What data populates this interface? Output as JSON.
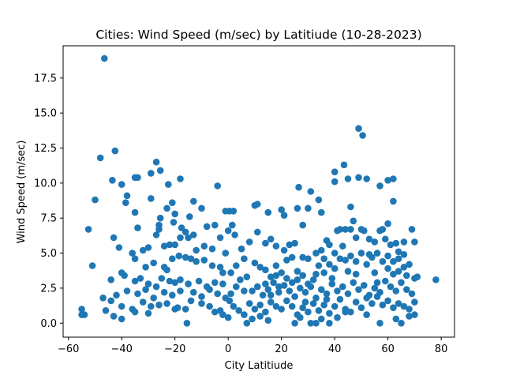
{
  "chart_data": {
    "type": "scatter",
    "title": "Cities: Wind Speed (m/sec) by Latitiude (10-28-2023)",
    "xlabel": "City Latitiude",
    "ylabel": "Wind Speed (m/sec)",
    "xlim": [
      -62,
      85
    ],
    "ylim": [
      -1,
      19.8
    ],
    "xticks": [
      -60,
      -40,
      -20,
      0,
      20,
      40,
      60,
      80
    ],
    "xtick_labels": [
      "−60",
      "−40",
      "−20",
      "0",
      "20",
      "40",
      "60",
      "80"
    ],
    "yticks": [
      0.0,
      2.5,
      5.0,
      7.5,
      10.0,
      12.5,
      15.0,
      17.5
    ],
    "ytick_labels": [
      "0.0",
      "2.5",
      "5.0",
      "7.5",
      "10.0",
      "12.5",
      "15.0",
      "17.5"
    ],
    "grid": false,
    "legend": "none",
    "marker_color": "#1f77b4",
    "points": [
      [
        -46.5,
        18.9
      ],
      [
        -42.5,
        12.3
      ],
      [
        -48,
        11.8
      ],
      [
        -27,
        11.5
      ],
      [
        -29,
        10.7
      ],
      [
        -25.5,
        10.9
      ],
      [
        -43.5,
        10.2
      ],
      [
        -35,
        10.4
      ],
      [
        -34,
        10.4
      ],
      [
        -18,
        10.3
      ],
      [
        -40,
        9.9
      ],
      [
        -22.5,
        9.9
      ],
      [
        -38,
        9.1
      ],
      [
        -29,
        8.9
      ],
      [
        -38.5,
        8.6
      ],
      [
        -21,
        8.6
      ],
      [
        -13,
        8.7
      ],
      [
        -50,
        8.8
      ],
      [
        -23,
        8.2
      ],
      [
        -10,
        8.2
      ],
      [
        -4,
        9.8
      ],
      [
        -35,
        7.9
      ],
      [
        -20,
        7.8
      ],
      [
        -25.5,
        7.5
      ],
      [
        -14.5,
        7.6
      ],
      [
        -26,
        7.0
      ],
      [
        -20.5,
        7.2
      ],
      [
        -17.5,
        6.8
      ],
      [
        -16,
        6.5
      ],
      [
        -13,
        6.3
      ],
      [
        -8,
        6.9
      ],
      [
        -5,
        7.0
      ],
      [
        -3,
        6.1
      ],
      [
        -52.5,
        6.7
      ],
      [
        -43,
        6.1
      ],
      [
        -34,
        6.8
      ],
      [
        -27,
        6.3
      ],
      [
        -26,
        6.7
      ],
      [
        -18,
        6.1
      ],
      [
        -15,
        6.1
      ],
      [
        -41,
        5.4
      ],
      [
        -36,
        5.0
      ],
      [
        -32,
        5.2
      ],
      [
        -30,
        5.4
      ],
      [
        -24,
        5.5
      ],
      [
        -22,
        5.6
      ],
      [
        -20,
        5.6
      ],
      [
        -12,
        5.2
      ],
      [
        -9,
        5.5
      ],
      [
        -6,
        5.3
      ],
      [
        -1,
        5.0
      ],
      [
        -51,
        4.1
      ],
      [
        -40,
        3.6
      ],
      [
        -35,
        4.6
      ],
      [
        -31,
        4.0
      ],
      [
        -28,
        4.3
      ],
      [
        -24,
        4.0
      ],
      [
        -23,
        3.8
      ],
      [
        -21,
        4.6
      ],
      [
        -18.5,
        4.8
      ],
      [
        -16,
        4.7
      ],
      [
        -14,
        4.6
      ],
      [
        -12,
        4.4
      ],
      [
        -9,
        4.5
      ],
      [
        -6,
        4.1
      ],
      [
        -3,
        4.0
      ],
      [
        -2,
        3.6
      ],
      [
        -44,
        3.1
      ],
      [
        -39,
        3.4
      ],
      [
        -35,
        3.0
      ],
      [
        -33,
        3.2
      ],
      [
        -30,
        2.8
      ],
      [
        -27,
        2.6
      ],
      [
        -25,
        3.2
      ],
      [
        -22,
        3.0
      ],
      [
        -20,
        2.9
      ],
      [
        -18,
        3.1
      ],
      [
        -15,
        2.8
      ],
      [
        -11,
        3.0
      ],
      [
        -8,
        2.6
      ],
      [
        -5,
        2.9
      ],
      [
        -2,
        2.8
      ],
      [
        -42,
        2.0
      ],
      [
        -38,
        2.3
      ],
      [
        -34,
        2.1
      ],
      [
        -31,
        2.4
      ],
      [
        -28,
        1.8
      ],
      [
        -24,
        2.2
      ],
      [
        -21,
        2.0
      ],
      [
        -18,
        2.3
      ],
      [
        -13,
        2.2
      ],
      [
        -10,
        1.9
      ],
      [
        -7,
        2.4
      ],
      [
        -4,
        2.1
      ],
      [
        -1,
        1.8
      ],
      [
        -47,
        1.8
      ],
      [
        -44,
        1.6
      ],
      [
        -40,
        1.2
      ],
      [
        -36,
        1.0
      ],
      [
        -32,
        1.5
      ],
      [
        -29,
        1.2
      ],
      [
        -26,
        1.3
      ],
      [
        -23,
        1.4
      ],
      [
        -19,
        1.1
      ],
      [
        -16,
        1.0
      ],
      [
        -14,
        1.6
      ],
      [
        -10,
        1.4
      ],
      [
        -7,
        1.2
      ],
      [
        -3,
        0.9
      ],
      [
        -55,
        1.0
      ],
      [
        -55,
        0.6
      ],
      [
        -54,
        0.6
      ],
      [
        -46,
        0.9
      ],
      [
        -43,
        0.5
      ],
      [
        -40,
        0.3
      ],
      [
        -35,
        0.8
      ],
      [
        -30,
        0.7
      ],
      [
        -20,
        1.0
      ],
      [
        -15.5,
        0.0
      ],
      [
        -5,
        0.8
      ],
      [
        -2,
        0.6
      ],
      [
        -1,
        8.0
      ],
      [
        0.5,
        8.0
      ],
      [
        2,
        8.0
      ],
      [
        1.5,
        7.0
      ],
      [
        0,
        6.6
      ],
      [
        2.5,
        6.3
      ],
      [
        5,
        5.3
      ],
      [
        3,
        4.1
      ],
      [
        1,
        3.6
      ],
      [
        4.5,
        3.1
      ],
      [
        6,
        2.3
      ],
      [
        3,
        2.6
      ],
      [
        1,
        2.1
      ],
      [
        0.5,
        1.6
      ],
      [
        2,
        1.2
      ],
      [
        4,
        0.9
      ],
      [
        6,
        0.6
      ],
      [
        0,
        0.4
      ],
      [
        7,
        0.0
      ],
      [
        6,
        4.6
      ],
      [
        8,
        5.8
      ],
      [
        7,
        3.3
      ],
      [
        10,
        8.4
      ],
      [
        11,
        8.5
      ],
      [
        15,
        7.9
      ],
      [
        20,
        8.1
      ],
      [
        21,
        7.7
      ],
      [
        26,
        8.2
      ],
      [
        30,
        8.2
      ],
      [
        31,
        9.4
      ],
      [
        34,
        8.8
      ],
      [
        26.5,
        9.7
      ],
      [
        35,
        7.9
      ],
      [
        28,
        7.0
      ],
      [
        40,
        10.8
      ],
      [
        40,
        10.1
      ],
      [
        43.5,
        11.3
      ],
      [
        45,
        10.3
      ],
      [
        49,
        13.9
      ],
      [
        50.5,
        13.4
      ],
      [
        49,
        10.4
      ],
      [
        52,
        10.3
      ],
      [
        57,
        9.8
      ],
      [
        60,
        10.2
      ],
      [
        62,
        10.3
      ],
      [
        62,
        8.7
      ],
      [
        46,
        8.3
      ],
      [
        60,
        7.1
      ],
      [
        47,
        7.3
      ],
      [
        11,
        6.5
      ],
      [
        14,
        5.7
      ],
      [
        16,
        6.0
      ],
      [
        18,
        5.5
      ],
      [
        21,
        5.2
      ],
      [
        23,
        5.6
      ],
      [
        25,
        5.7
      ],
      [
        28,
        4.7
      ],
      [
        30,
        4.6
      ],
      [
        33,
        5.0
      ],
      [
        35,
        5.2
      ],
      [
        37,
        5.9
      ],
      [
        38,
        5.6
      ],
      [
        40,
        5.0
      ],
      [
        42,
        6.7
      ],
      [
        44,
        6.7
      ],
      [
        46,
        6.7
      ],
      [
        48,
        6.1
      ],
      [
        50,
        6.7
      ],
      [
        51,
        6.6
      ],
      [
        53,
        6.0
      ],
      [
        55,
        5.8
      ],
      [
        57,
        6.6
      ],
      [
        59,
        6.0
      ],
      [
        61,
        5.6
      ],
      [
        63,
        5.7
      ],
      [
        66,
        5.8
      ],
      [
        69,
        6.7
      ],
      [
        70,
        5.8
      ],
      [
        58,
        6.7
      ],
      [
        10,
        4.3
      ],
      [
        12,
        4.0
      ],
      [
        14,
        3.8
      ],
      [
        16,
        3.3
      ],
      [
        18,
        4.1
      ],
      [
        20,
        3.6
      ],
      [
        22,
        3.2
      ],
      [
        24,
        2.9
      ],
      [
        26,
        3.7
      ],
      [
        28,
        3.4
      ],
      [
        30,
        2.8
      ],
      [
        32,
        3.1
      ],
      [
        34,
        4.1
      ],
      [
        36,
        3.6
      ],
      [
        38,
        4.2
      ],
      [
        40,
        3.9
      ],
      [
        42,
        4.6
      ],
      [
        44,
        4.5
      ],
      [
        46,
        4.8
      ],
      [
        48,
        4.4
      ],
      [
        50,
        5.0
      ],
      [
        52,
        4.2
      ],
      [
        54,
        4.7
      ],
      [
        56,
        5.0
      ],
      [
        58,
        4.4
      ],
      [
        60,
        4.8
      ],
      [
        62,
        4.4
      ],
      [
        64,
        4.6
      ],
      [
        66,
        4.0
      ],
      [
        68,
        4.2
      ],
      [
        70,
        3.2
      ],
      [
        71,
        3.3
      ],
      [
        78,
        3.1
      ],
      [
        9,
        2.3
      ],
      [
        11,
        2.6
      ],
      [
        13,
        2.0
      ],
      [
        15,
        2.4
      ],
      [
        17,
        2.9
      ],
      [
        19,
        2.2
      ],
      [
        21,
        2.7
      ],
      [
        23,
        2.3
      ],
      [
        25,
        1.9
      ],
      [
        27,
        2.5
      ],
      [
        29,
        2.2
      ],
      [
        31,
        2.6
      ],
      [
        33,
        1.8
      ],
      [
        35,
        2.4
      ],
      [
        37,
        2.1
      ],
      [
        39,
        2.8
      ],
      [
        41,
        2.3
      ],
      [
        43,
        2.6
      ],
      [
        45,
        2.1
      ],
      [
        47,
        2.9
      ],
      [
        49,
        2.4
      ],
      [
        51,
        2.7
      ],
      [
        53,
        2.0
      ],
      [
        55,
        2.5
      ],
      [
        57,
        2.2
      ],
      [
        59,
        3.0
      ],
      [
        61,
        2.6
      ],
      [
        63,
        2.3
      ],
      [
        65,
        2.9
      ],
      [
        67,
        2.4
      ],
      [
        69,
        2.1
      ],
      [
        8,
        1.4
      ],
      [
        10,
        1.0
      ],
      [
        12,
        1.3
      ],
      [
        14,
        0.8
      ],
      [
        16,
        1.5
      ],
      [
        18,
        1.2
      ],
      [
        20,
        1.0
      ],
      [
        22,
        1.6
      ],
      [
        24,
        1.2
      ],
      [
        26,
        0.6
      ],
      [
        28,
        1.1
      ],
      [
        30,
        0.8
      ],
      [
        32,
        1.4
      ],
      [
        34,
        0.9
      ],
      [
        36,
        1.3
      ],
      [
        38,
        0.7
      ],
      [
        40,
        1.2
      ],
      [
        42,
        1.7
      ],
      [
        44,
        1.0
      ],
      [
        46,
        0.8
      ],
      [
        48,
        1.5
      ],
      [
        50,
        1.1
      ],
      [
        52,
        1.8
      ],
      [
        54,
        1.4
      ],
      [
        56,
        1.9
      ],
      [
        58,
        1.3
      ],
      [
        60,
        1.6
      ],
      [
        62,
        1.1
      ],
      [
        64,
        1.4
      ],
      [
        66,
        1.2
      ],
      [
        68,
        1.0
      ],
      [
        70,
        1.5
      ],
      [
        9,
        0.3
      ],
      [
        12,
        0.5
      ],
      [
        15,
        0.2
      ],
      [
        25,
        0.0
      ],
      [
        27,
        0.4
      ],
      [
        31,
        0.0
      ],
      [
        33,
        0.0
      ],
      [
        35,
        0.3
      ],
      [
        38,
        0.0
      ],
      [
        41,
        0.4
      ],
      [
        44,
        0.8
      ],
      [
        52,
        0.6
      ],
      [
        57,
        0.0
      ],
      [
        63,
        0.3
      ],
      [
        65,
        0.0
      ],
      [
        68,
        0.5
      ],
      [
        70,
        0.6
      ],
      [
        55,
        3.6
      ],
      [
        62,
        3.5
      ],
      [
        64,
        3.7
      ],
      [
        67,
        3.4
      ],
      [
        43,
        5.5
      ],
      [
        41,
        6.6
      ],
      [
        36,
        4.6
      ],
      [
        26,
        3.1
      ],
      [
        22,
        4.5
      ],
      [
        18,
        3.4
      ],
      [
        16,
        2.0
      ],
      [
        48,
        3.5
      ],
      [
        45,
        3.7
      ],
      [
        56,
        2.9
      ],
      [
        60,
        3.9
      ],
      [
        64,
        5.1
      ],
      [
        66,
        4.9
      ],
      [
        53,
        4.9
      ],
      [
        39,
        3.2
      ],
      [
        37,
        1.7
      ],
      [
        33,
        3.5
      ],
      [
        29,
        1.5
      ],
      [
        24,
        4.7
      ],
      [
        19,
        2.6
      ],
      [
        14,
        2.8
      ]
    ]
  }
}
